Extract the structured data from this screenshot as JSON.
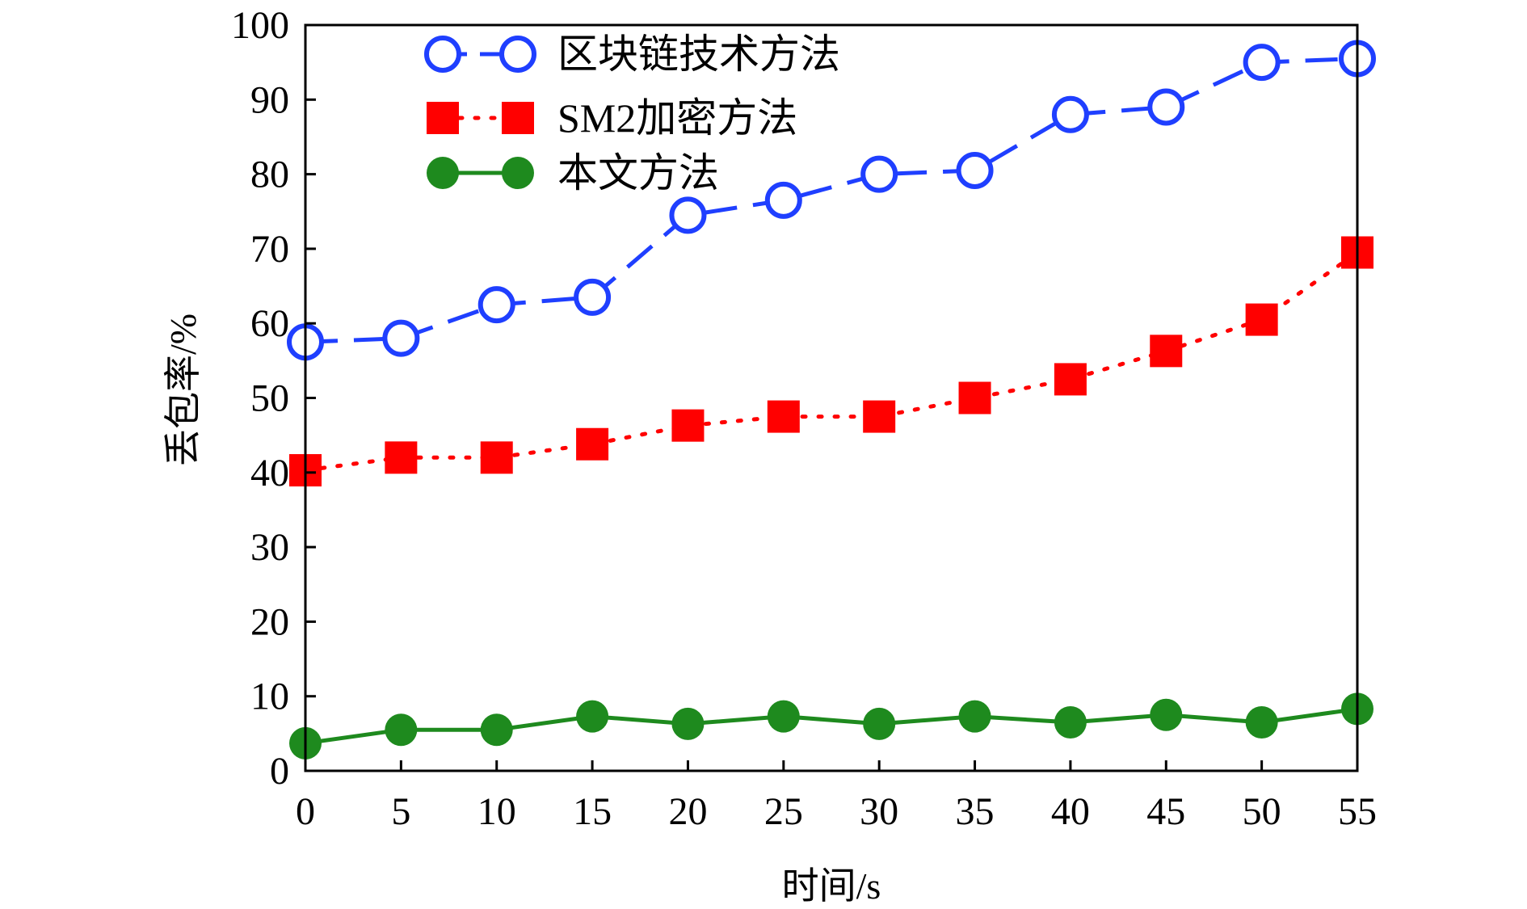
{
  "chart_data": {
    "type": "line",
    "title": "",
    "xlabel": "时间/s",
    "ylabel": "丢包率/%",
    "xlim": [
      0,
      55
    ],
    "ylim": [
      0,
      100
    ],
    "x": [
      0,
      5,
      10,
      15,
      20,
      25,
      30,
      35,
      40,
      45,
      50,
      55
    ],
    "xticks": [
      0,
      5,
      10,
      15,
      20,
      25,
      30,
      35,
      40,
      45,
      50,
      55
    ],
    "yticks": [
      0,
      10,
      20,
      30,
      40,
      50,
      60,
      70,
      80,
      90,
      100
    ],
    "grid": false,
    "legend_position": "top-left",
    "series": [
      {
        "name": "区块链技术方法",
        "values": [
          57.5,
          58,
          62.5,
          63.5,
          74.5,
          76.5,
          80,
          80.5,
          88,
          89,
          95,
          95.5
        ],
        "color": "#1f3fff",
        "marker": "open-circle",
        "line_style": "dashed"
      },
      {
        "name": "SM2加密方法",
        "values": [
          40.3,
          42,
          42,
          43.8,
          46.3,
          47.5,
          47.5,
          50,
          52.5,
          56.3,
          60.5,
          69.5
        ],
        "color": "#ff0000",
        "marker": "filled-square",
        "line_style": "dotted"
      },
      {
        "name": "本文方法",
        "values": [
          3.7,
          5.5,
          5.5,
          7.3,
          6.3,
          7.3,
          6.3,
          7.3,
          6.5,
          7.5,
          6.5,
          8.3
        ],
        "color": "#1e8a1e",
        "marker": "filled-circle",
        "line_style": "solid"
      }
    ]
  }
}
